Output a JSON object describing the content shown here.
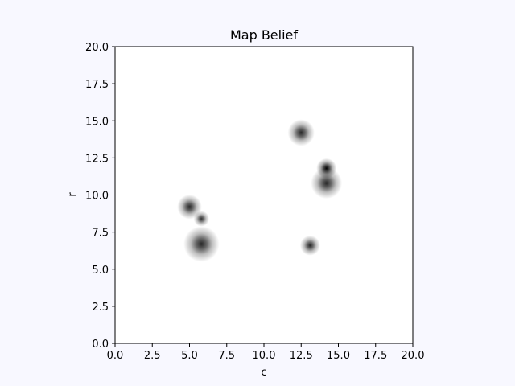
{
  "chart_data": {
    "type": "heatmap",
    "title": "Map Belief",
    "xlabel": "c",
    "ylabel": "r",
    "xlim": [
      0,
      20
    ],
    "ylim": [
      0,
      20
    ],
    "xticks": [
      "0.0",
      "2.5",
      "5.0",
      "7.5",
      "10.0",
      "12.5",
      "15.0",
      "17.5",
      "20.0"
    ],
    "yticks": [
      "0.0",
      "2.5",
      "5.0",
      "7.5",
      "10.0",
      "12.5",
      "15.0",
      "17.5",
      "20.0"
    ],
    "xtick_values": [
      0,
      2.5,
      5,
      7.5,
      10,
      12.5,
      15,
      17.5,
      20
    ],
    "ytick_values": [
      0,
      2.5,
      5,
      7.5,
      10,
      12.5,
      15,
      17.5,
      20
    ],
    "grid": false,
    "colormap": "greys",
    "blobs": [
      {
        "c": 5.0,
        "r": 9.2,
        "intensity": 0.85,
        "spread": 0.55
      },
      {
        "c": 5.8,
        "r": 8.4,
        "intensity": 0.8,
        "spread": 0.35
      },
      {
        "c": 5.8,
        "r": 6.7,
        "intensity": 0.85,
        "spread": 0.8
      },
      {
        "c": 12.5,
        "r": 14.2,
        "intensity": 0.85,
        "spread": 0.6
      },
      {
        "c": 14.2,
        "r": 11.8,
        "intensity": 1.0,
        "spread": 0.45
      },
      {
        "c": 14.2,
        "r": 10.8,
        "intensity": 0.85,
        "spread": 0.7
      },
      {
        "c": 13.1,
        "r": 6.6,
        "intensity": 0.85,
        "spread": 0.45
      }
    ]
  }
}
